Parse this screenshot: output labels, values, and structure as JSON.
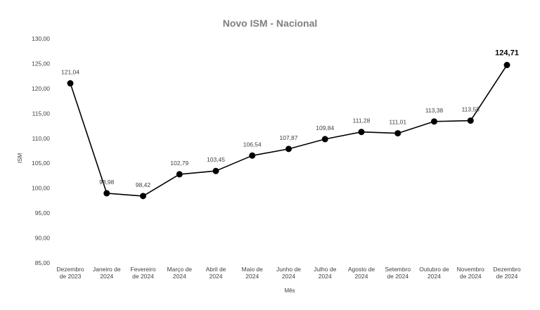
{
  "chart_data": {
    "type": "line",
    "title": "Novo ISM - Nacional",
    "xlabel": "Mês",
    "ylabel": "ISM",
    "ylim": [
      85,
      130
    ],
    "yticks": [
      "85,00",
      "90,00",
      "95,00",
      "100,00",
      "105,00",
      "110,00",
      "115,00",
      "120,00",
      "125,00",
      "130,00"
    ],
    "categories": [
      [
        "Dezembro",
        "de 2023"
      ],
      [
        "Janeiro de",
        "2024"
      ],
      [
        "Fevereiro",
        "de 2024"
      ],
      [
        "Março de",
        "2024"
      ],
      [
        "Abril de",
        "2024"
      ],
      [
        "Maio de",
        "2024"
      ],
      [
        "Junho de",
        "2024"
      ],
      [
        "Julho de",
        "2024"
      ],
      [
        "Agosto de",
        "2024"
      ],
      [
        "Setembro",
        "de 2024"
      ],
      [
        "Outubro de",
        "2024"
      ],
      [
        "Novembro",
        "de 2024"
      ],
      [
        "Dezembro",
        "de 2024"
      ]
    ],
    "values": [
      121.04,
      98.98,
      98.42,
      102.79,
      103.45,
      106.54,
      107.87,
      109.84,
      111.28,
      111.01,
      113.38,
      113.55,
      124.71
    ],
    "labels": [
      "121,04",
      "98,98",
      "98,42",
      "102,79",
      "103,45",
      "106,54",
      "107,87",
      "109,84",
      "111,28",
      "111,01",
      "113,38",
      "113,55",
      "124,71"
    ],
    "highlight_last": true,
    "grid": false,
    "colors": {
      "line": "#000000",
      "marker": "#000000",
      "title": "#7f7f7f",
      "text": "#404040"
    }
  }
}
